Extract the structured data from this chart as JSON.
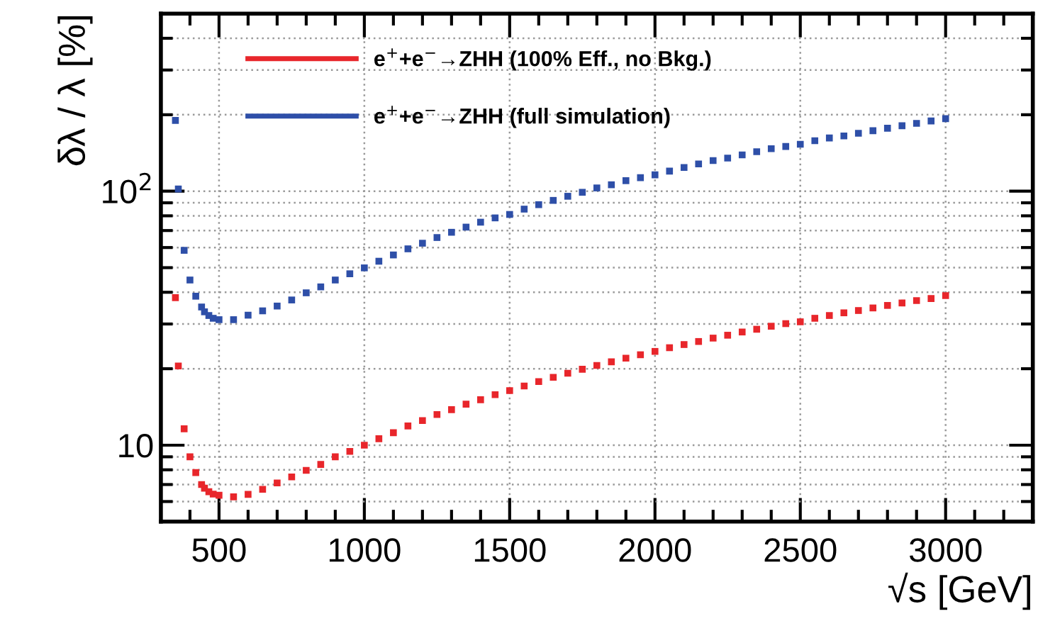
{
  "chart_data": {
    "type": "scatter",
    "xlabel": "√s [GeV]",
    "ylabel": "δλ / λ [%]",
    "log": "y",
    "marker": "square",
    "grid": true,
    "legend": "top left",
    "x": [
      350,
      360,
      380,
      400,
      420,
      440,
      450,
      465,
      480,
      500,
      550,
      600,
      650,
      700,
      750,
      800,
      850,
      900,
      950,
      1000,
      1050,
      1100,
      1150,
      1200,
      1250,
      1300,
      1350,
      1400,
      1450,
      1500,
      1550,
      1600,
      1650,
      1700,
      1750,
      1800,
      1850,
      1900,
      1950,
      2000,
      2050,
      2100,
      2150,
      2200,
      2250,
      2300,
      2350,
      2400,
      2450,
      2500,
      2550,
      2600,
      2650,
      2700,
      2750,
      2800,
      2850,
      2900,
      2950,
      3000
    ],
    "series": [
      {
        "name": "e$^{+}$+e$^{−}$→ZHH (100% Eff., no Bkg.)",
        "color": "#e8262b",
        "values": [
          38.1,
          20.5,
          11.6,
          9.0,
          7.8,
          7.0,
          6.77,
          6.56,
          6.42,
          6.35,
          6.26,
          6.4,
          6.7,
          7.1,
          7.5,
          7.96,
          8.4,
          9.0,
          9.45,
          10.0,
          10.6,
          11.2,
          11.9,
          12.5,
          13.2,
          13.8,
          14.5,
          15.1,
          15.8,
          16.4,
          17.1,
          17.8,
          18.5,
          19.2,
          19.9,
          20.6,
          21.3,
          22.0,
          22.7,
          23.4,
          24.2,
          24.9,
          25.6,
          26.4,
          27.1,
          27.9,
          28.6,
          29.4,
          30.1,
          30.6,
          31.6,
          32.4,
          33.2,
          33.9,
          34.7,
          35.5,
          36.3,
          37.1,
          37.8,
          38.8
        ]
      },
      {
        "name": "e$^{+}$+e$^{−}$→ZHH (full simulation)",
        "color": "#2e4fa8",
        "values": [
          190,
          102,
          58.5,
          44.7,
          38.6,
          35.0,
          33.5,
          32.4,
          31.6,
          31.2,
          31.2,
          32.5,
          33.8,
          35.3,
          37.3,
          39.8,
          42.0,
          44.7,
          47.3,
          49.9,
          53.0,
          56.1,
          59.3,
          62.4,
          65.7,
          68.9,
          72.2,
          75.5,
          78.5,
          81.0,
          85.0,
          88.5,
          92.0,
          95.5,
          99.0,
          103,
          106,
          110,
          113,
          116,
          120,
          124,
          128,
          132,
          135,
          139,
          143,
          147,
          150,
          153,
          158,
          162,
          165,
          169,
          173,
          177,
          181,
          185,
          189,
          193
        ]
      }
    ],
    "xlim": [
      300,
      3300
    ],
    "xticks": [
      {
        "value": 400,
        "label": null
      },
      500,
      {
        "value": 600,
        "label": null
      },
      {
        "value": 700,
        "label": null
      },
      {
        "value": 800,
        "label": null
      },
      {
        "value": 900,
        "label": null
      },
      1000,
      {
        "value": 1100,
        "label": null
      },
      {
        "value": 1200,
        "label": null
      },
      {
        "value": 1300,
        "label": null
      },
      {
        "value": 1400,
        "label": null
      },
      1500,
      {
        "value": 1600,
        "label": null
      },
      {
        "value": 1700,
        "label": null
      },
      {
        "value": 1800,
        "label": null
      },
      {
        "value": 1900,
        "label": null
      },
      2000,
      {
        "value": 2100,
        "label": null
      },
      {
        "value": 2200,
        "label": null
      },
      {
        "value": 2300,
        "label": null
      },
      {
        "value": 2400,
        "label": null
      },
      2500,
      {
        "value": 2600,
        "label": null
      },
      {
        "value": 2700,
        "label": null
      },
      {
        "value": 2800,
        "label": null
      },
      {
        "value": 2900,
        "label": null
      },
      3000,
      {
        "value": 3100,
        "label": null
      },
      {
        "value": 3200,
        "label": null
      }
    ],
    "ylim": [
      5,
      500
    ],
    "yticks": [
      {
        "value": 6,
        "label": null
      },
      {
        "value": 7,
        "label": null
      },
      {
        "value": 8,
        "label": null
      },
      {
        "value": 9,
        "label": null
      },
      10,
      {
        "value": 20,
        "label": null
      },
      {
        "value": 30,
        "label": null
      },
      {
        "value": 40,
        "label": null
      },
      {
        "value": 50,
        "label": null
      },
      {
        "value": 60,
        "label": null
      },
      {
        "value": 70,
        "label": null
      },
      {
        "value": 80,
        "label": null
      },
      {
        "value": 90,
        "label": null
      },
      {
        "value": 100,
        "label": "10$^{2}$"
      },
      {
        "value": 200,
        "label": null
      },
      {
        "value": 300,
        "label": null
      },
      {
        "value": 400,
        "label": null
      }
    ]
  }
}
